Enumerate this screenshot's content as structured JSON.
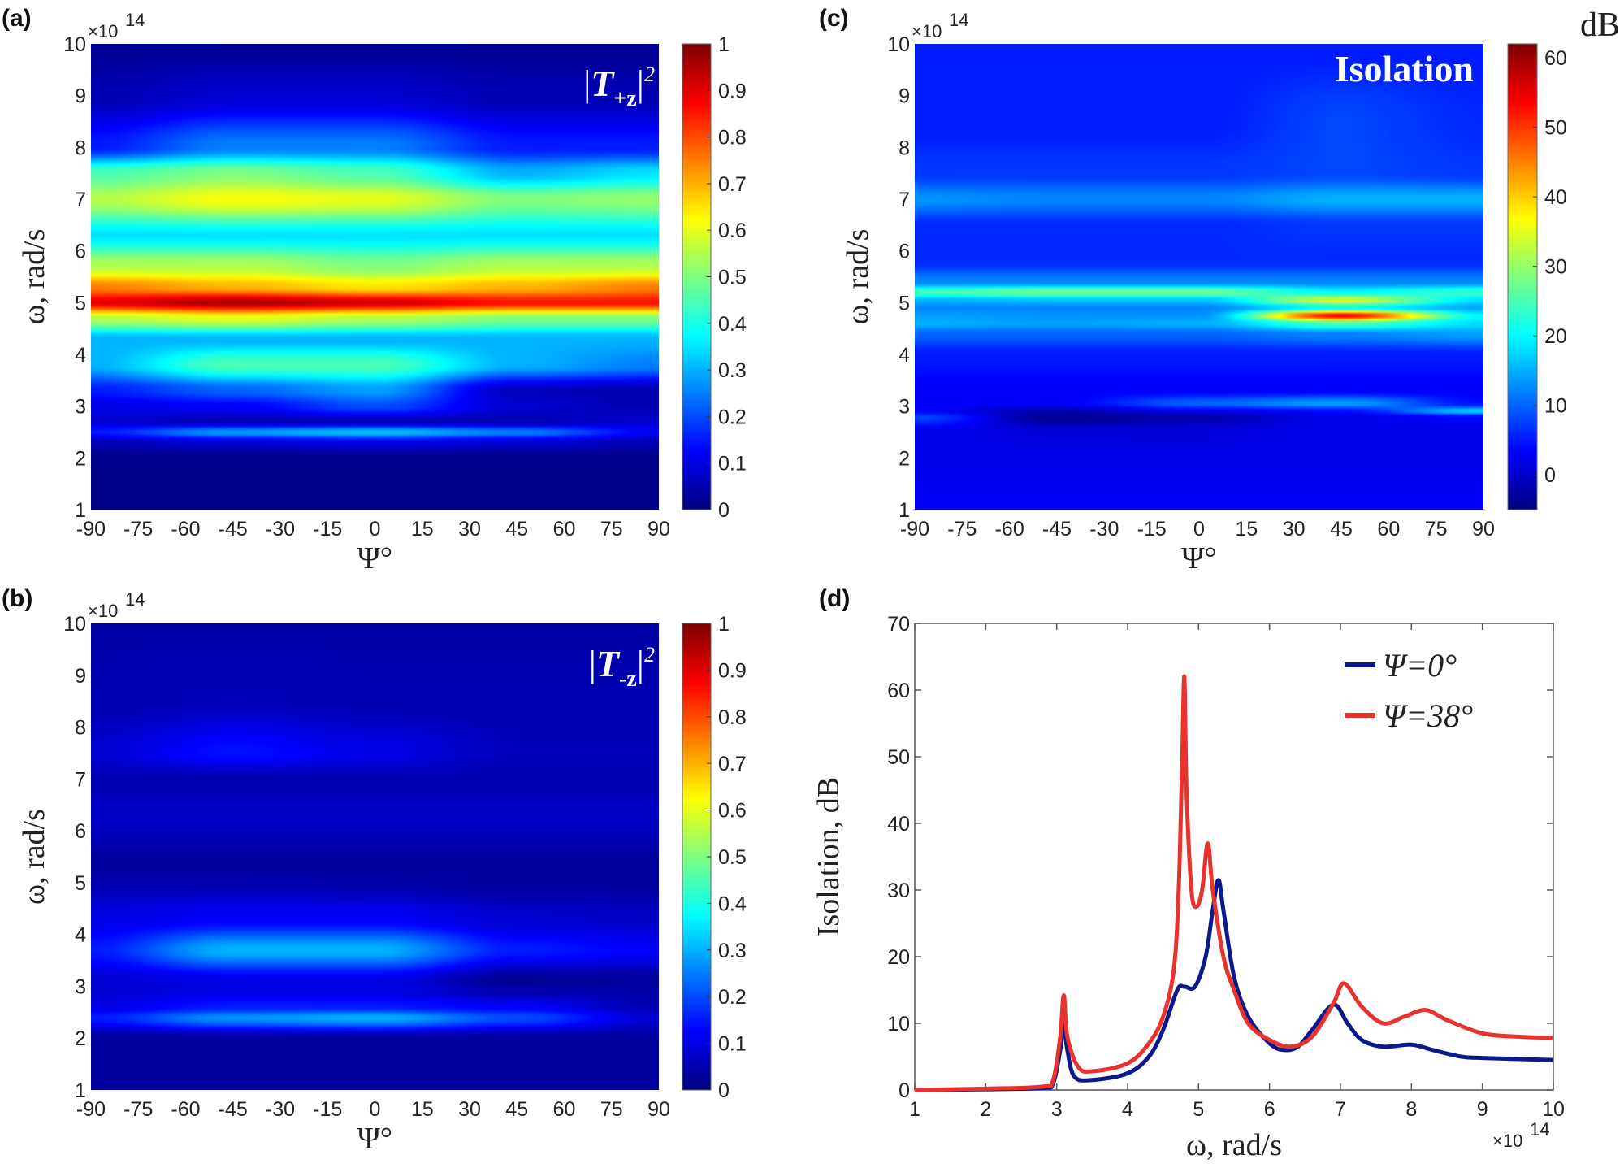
{
  "panel_labels": [
    "(a)",
    "(b)",
    "(c)",
    "(d)"
  ],
  "chart_data": [
    {
      "id": "a",
      "type": "heatmap",
      "annotation": {
        "base": "T",
        "sub": "+z",
        "sup": "2"
      },
      "xlabel": "Ψ°",
      "ylabel": "ω, rad/s",
      "y_multiplier": "×10",
      "y_multiplier_exp": "14",
      "xlim": [
        -90,
        90
      ],
      "ylim": [
        1,
        10
      ],
      "xticks": [
        "-90",
        "-75",
        "-60",
        "-45",
        "-30",
        "-15",
        "0",
        "15",
        "30",
        "45",
        "60",
        "75",
        "90"
      ],
      "yticks": [
        "1",
        "2",
        "3",
        "4",
        "5",
        "6",
        "7",
        "8",
        "9",
        "10"
      ],
      "colorbar": {
        "range": [
          0,
          1
        ],
        "ticks": [
          "0",
          "0.1",
          "0.2",
          "0.3",
          "0.4",
          "0.5",
          "0.6",
          "0.7",
          "0.8",
          "0.9",
          "1"
        ],
        "label": ""
      },
      "psi": [
        -90,
        -45,
        0,
        45,
        90
      ],
      "omega": [
        1,
        2,
        2.3,
        2.5,
        2.7,
        3,
        3.3,
        3.8,
        4.3,
        4.7,
        5,
        5.3,
        5.7,
        6.3,
        7,
        7.5,
        8,
        9,
        10
      ],
      "values": [
        [
          0.01,
          0.01,
          0.01,
          0.01,
          0.01
        ],
        [
          0.01,
          0.01,
          0.01,
          0.01,
          0.01
        ],
        [
          0.05,
          0.08,
          0.1,
          0.08,
          0.05
        ],
        [
          0.15,
          0.28,
          0.32,
          0.25,
          0.12
        ],
        [
          0.08,
          0.05,
          0.05,
          0.05,
          0.08
        ],
        [
          0.1,
          0.12,
          0.2,
          0.08,
          0.05
        ],
        [
          0.15,
          0.22,
          0.28,
          0.06,
          0.05
        ],
        [
          0.3,
          0.45,
          0.45,
          0.3,
          0.25
        ],
        [
          0.3,
          0.3,
          0.3,
          0.3,
          0.3
        ],
        [
          0.55,
          0.6,
          0.55,
          0.5,
          0.5
        ],
        [
          0.9,
          0.96,
          0.92,
          0.86,
          0.86
        ],
        [
          0.75,
          0.7,
          0.65,
          0.7,
          0.75
        ],
        [
          0.55,
          0.55,
          0.5,
          0.55,
          0.55
        ],
        [
          0.35,
          0.35,
          0.35,
          0.35,
          0.35
        ],
        [
          0.55,
          0.62,
          0.6,
          0.5,
          0.52
        ],
        [
          0.45,
          0.5,
          0.45,
          0.3,
          0.35
        ],
        [
          0.15,
          0.25,
          0.25,
          0.15,
          0.15
        ],
        [
          0.05,
          0.08,
          0.08,
          0.05,
          0.05
        ],
        [
          0.02,
          0.02,
          0.02,
          0.02,
          0.02
        ]
      ]
    },
    {
      "id": "b",
      "type": "heatmap",
      "annotation": {
        "base": "T",
        "sub": "-z",
        "sup": "2"
      },
      "xlabel": "Ψ°",
      "ylabel": "ω, rad/s",
      "y_multiplier": "×10",
      "y_multiplier_exp": "14",
      "xlim": [
        -90,
        90
      ],
      "ylim": [
        1,
        10
      ],
      "xticks": [
        "-90",
        "-75",
        "-60",
        "-45",
        "-30",
        "-15",
        "0",
        "15",
        "30",
        "45",
        "60",
        "75",
        "90"
      ],
      "yticks": [
        "1",
        "2",
        "3",
        "4",
        "5",
        "6",
        "7",
        "8",
        "9",
        "10"
      ],
      "colorbar": {
        "range": [
          0,
          1
        ],
        "ticks": [
          "0",
          "0.1",
          "0.2",
          "0.3",
          "0.4",
          "0.5",
          "0.6",
          "0.7",
          "0.8",
          "0.9",
          "1"
        ],
        "label": ""
      },
      "psi": [
        -90,
        -45,
        0,
        45,
        90
      ],
      "omega": [
        1,
        2,
        2.4,
        2.6,
        2.9,
        3.1,
        3.7,
        4.3,
        5,
        5.3,
        6.3,
        7,
        7.5,
        8.5,
        10
      ],
      "values": [
        [
          0.03,
          0.03,
          0.03,
          0.03,
          0.03
        ],
        [
          0.03,
          0.03,
          0.03,
          0.03,
          0.03
        ],
        [
          0.15,
          0.27,
          0.3,
          0.2,
          0.08
        ],
        [
          0.1,
          0.15,
          0.15,
          0.12,
          0.05
        ],
        [
          0.08,
          0.1,
          0.1,
          0.05,
          0.04
        ],
        [
          0.08,
          0.1,
          0.1,
          0.02,
          0.03
        ],
        [
          0.15,
          0.3,
          0.3,
          0.15,
          0.12
        ],
        [
          0.1,
          0.12,
          0.12,
          0.08,
          0.07
        ],
        [
          0.05,
          0.05,
          0.04,
          0.03,
          0.03
        ],
        [
          0.03,
          0.03,
          0.03,
          0.03,
          0.03
        ],
        [
          0.07,
          0.07,
          0.07,
          0.07,
          0.07
        ],
        [
          0.05,
          0.05,
          0.05,
          0.05,
          0.05
        ],
        [
          0.08,
          0.14,
          0.1,
          0.06,
          0.06
        ],
        [
          0.05,
          0.06,
          0.05,
          0.05,
          0.05
        ],
        [
          0.04,
          0.04,
          0.04,
          0.04,
          0.04
        ]
      ]
    },
    {
      "id": "c",
      "type": "heatmap",
      "annotation": {
        "text": "Isolation"
      },
      "xlabel": "Ψ°",
      "ylabel": "ω, rad/s",
      "y_multiplier": "×10",
      "y_multiplier_exp": "14",
      "xlim": [
        -90,
        90
      ],
      "ylim": [
        1,
        10
      ],
      "xticks": [
        "-90",
        "-75",
        "-60",
        "-45",
        "-30",
        "-15",
        "0",
        "15",
        "30",
        "45",
        "60",
        "75",
        "90"
      ],
      "yticks": [
        "1",
        "2",
        "3",
        "4",
        "5",
        "6",
        "7",
        "8",
        "9",
        "10"
      ],
      "colorbar": {
        "range": [
          -5,
          62
        ],
        "ticks": [
          "0",
          "10",
          "20",
          "30",
          "40",
          "50",
          "60"
        ],
        "label": "dB"
      },
      "psi": [
        -90,
        -45,
        0,
        45,
        90
      ],
      "omega": [
        1,
        2,
        2.5,
        2.8,
        2.9,
        3.05,
        3.3,
        4,
        4.4,
        4.6,
        4.75,
        4.9,
        5.05,
        5.2,
        5.4,
        5.8,
        6.5,
        7,
        7.5,
        8.5,
        10
      ],
      "values": [
        [
          3,
          3,
          3,
          3,
          3
        ],
        [
          2,
          2,
          2,
          2,
          2
        ],
        [
          2,
          1,
          1,
          2,
          2
        ],
        [
          8,
          -4,
          -2,
          2,
          3
        ],
        [
          3,
          -2,
          2,
          4,
          18
        ],
        [
          3,
          3,
          10,
          14,
          4
        ],
        [
          3,
          3,
          3,
          3,
          3
        ],
        [
          5,
          5,
          5,
          5,
          5
        ],
        [
          10,
          10,
          10,
          12,
          14
        ],
        [
          15,
          14,
          15,
          25,
          18
        ],
        [
          14,
          13,
          13,
          55,
          20
        ],
        [
          12,
          12,
          12,
          20,
          14
        ],
        [
          15,
          16,
          16,
          35,
          18
        ],
        [
          25,
          28,
          28,
          20,
          24
        ],
        [
          12,
          12,
          12,
          12,
          12
        ],
        [
          6,
          6,
          6,
          6,
          6
        ],
        [
          6,
          6,
          6,
          7,
          7
        ],
        [
          13,
          12,
          12,
          15,
          15
        ],
        [
          7,
          7,
          7,
          8,
          7
        ],
        [
          5,
          5,
          5,
          8,
          6
        ],
        [
          5,
          5,
          5,
          5,
          5
        ]
      ]
    },
    {
      "id": "d",
      "type": "line",
      "xlabel": "ω, rad/s",
      "ylabel": "Isolation, dB",
      "x_multiplier": "×10",
      "x_multiplier_exp": "14",
      "xlim": [
        1,
        10
      ],
      "ylim": [
        0,
        70
      ],
      "xticks": [
        "1",
        "2",
        "3",
        "4",
        "5",
        "6",
        "7",
        "8",
        "9",
        "10"
      ],
      "yticks": [
        "0",
        "10",
        "20",
        "30",
        "40",
        "50",
        "60",
        "70"
      ],
      "legend_position": "top-right",
      "series": [
        {
          "name": "Ψ=0°",
          "color": "#0a1a8c",
          "x": [
            1,
            2,
            2.8,
            2.95,
            3.05,
            3.1,
            3.15,
            3.25,
            3.5,
            4,
            4.3,
            4.5,
            4.7,
            4.8,
            4.95,
            5.1,
            5.2,
            5.28,
            5.35,
            5.5,
            5.7,
            6,
            6.2,
            6.4,
            6.6,
            6.9,
            7.1,
            7.3,
            7.6,
            8,
            8.3,
            8.7,
            9,
            10
          ],
          "y": [
            0,
            0.1,
            0.3,
            1,
            6,
            10,
            6,
            2,
            1.5,
            2.5,
            5,
            9,
            15,
            15.5,
            15.5,
            20,
            27,
            31.5,
            27,
            17,
            11,
            7,
            6,
            6.5,
            9,
            12.8,
            10,
            7.5,
            6.5,
            6.8,
            6,
            5,
            4.8,
            4.5
          ]
        },
        {
          "name": "Ψ=38°",
          "color": "#e8322c",
          "x": [
            1,
            2,
            2.8,
            2.95,
            3.05,
            3.1,
            3.15,
            3.3,
            3.5,
            4,
            4.3,
            4.5,
            4.65,
            4.72,
            4.77,
            4.8,
            4.83,
            4.9,
            4.97,
            5.05,
            5.13,
            5.2,
            5.35,
            5.5,
            5.7,
            6,
            6.3,
            6.6,
            6.9,
            7.05,
            7.3,
            7.6,
            7.9,
            8.2,
            8.5,
            9,
            9.5,
            10
          ],
          "y": [
            0,
            0.2,
            0.5,
            1.5,
            8,
            14.2,
            8,
            3.5,
            2.8,
            4,
            7,
            11,
            18,
            30,
            50,
            62,
            45,
            30,
            27.5,
            30,
            37,
            30,
            20,
            15,
            10,
            7.5,
            6.5,
            8,
            13,
            16,
            12.5,
            10,
            11,
            12,
            10.5,
            8.5,
            8,
            7.8
          ]
        }
      ]
    }
  ]
}
